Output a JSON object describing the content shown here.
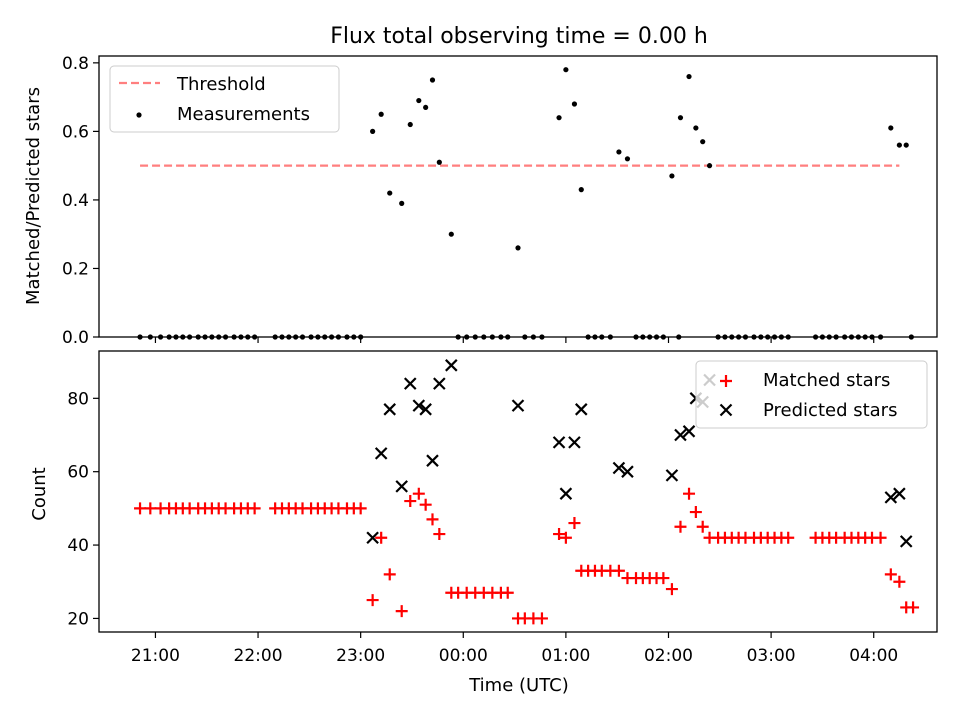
{
  "figure": {
    "title": "Flux total observing time = 0.00 h",
    "xlabel": "Time (UTC)",
    "xticks": [
      "21:00",
      "22:00",
      "23:00",
      "00:00",
      "01:00",
      "02:00",
      "03:00",
      "04:00"
    ]
  },
  "chart_data": [
    {
      "type": "scatter",
      "ylabel": "Matched/Predicted stars",
      "xlim": [
        "20:27",
        "04:37"
      ],
      "ylim": [
        0,
        0.82
      ],
      "yticks": [
        "0.0",
        "0.2",
        "0.4",
        "0.6",
        "0.8"
      ],
      "legend": {
        "position": "top-left",
        "entries": [
          "Threshold",
          "Measurements"
        ]
      },
      "threshold": {
        "name": "Threshold",
        "color": "#ff7f7f",
        "style": "dashed",
        "value": 0.5,
        "x": [
          "20:51",
          "04:15"
        ]
      },
      "series": [
        {
          "name": "Measurements",
          "marker": "dot",
          "color": "#000000",
          "points": [
            [
              "20:51",
              0
            ],
            [
              "20:57",
              0
            ],
            [
              "21:03",
              0
            ],
            [
              "21:08",
              0
            ],
            [
              "21:12",
              0
            ],
            [
              "21:16",
              0
            ],
            [
              "21:20",
              0
            ],
            [
              "21:25",
              0
            ],
            [
              "21:29",
              0
            ],
            [
              "21:33",
              0
            ],
            [
              "21:37",
              0
            ],
            [
              "21:41",
              0
            ],
            [
              "21:46",
              0
            ],
            [
              "21:50",
              0
            ],
            [
              "21:54",
              0
            ],
            [
              "21:58",
              0
            ],
            [
              "22:10",
              0
            ],
            [
              "22:14",
              0
            ],
            [
              "22:18",
              0
            ],
            [
              "22:22",
              0
            ],
            [
              "22:26",
              0
            ],
            [
              "22:31",
              0
            ],
            [
              "22:35",
              0
            ],
            [
              "22:39",
              0
            ],
            [
              "22:43",
              0
            ],
            [
              "22:47",
              0
            ],
            [
              "22:52",
              0
            ],
            [
              "22:56",
              0
            ],
            [
              "23:00",
              0
            ],
            [
              "23:07",
              0.6
            ],
            [
              "23:12",
              0.65
            ],
            [
              "23:17",
              0.42
            ],
            [
              "23:24",
              0.39
            ],
            [
              "23:29",
              0.62
            ],
            [
              "23:34",
              0.69
            ],
            [
              "23:38",
              0.67
            ],
            [
              "23:42",
              0.75
            ],
            [
              "23:46",
              0.51
            ],
            [
              "23:53",
              0.3
            ],
            [
              "23:57",
              0
            ],
            [
              "00:02",
              0
            ],
            [
              "00:07",
              0
            ],
            [
              "00:12",
              0
            ],
            [
              "00:17",
              0
            ],
            [
              "00:22",
              0
            ],
            [
              "00:26",
              0
            ],
            [
              "00:32",
              0.26
            ],
            [
              "00:36",
              0
            ],
            [
              "00:41",
              0
            ],
            [
              "00:46",
              0
            ],
            [
              "00:56",
              0.64
            ],
            [
              "01:00",
              0.78
            ],
            [
              "01:05",
              0.68
            ],
            [
              "01:09",
              0.43
            ],
            [
              "01:13",
              0
            ],
            [
              "01:17",
              0
            ],
            [
              "01:21",
              0
            ],
            [
              "01:26",
              0
            ],
            [
              "01:31",
              0.54
            ],
            [
              "01:36",
              0.52
            ],
            [
              "01:41",
              0
            ],
            [
              "01:45",
              0
            ],
            [
              "01:49",
              0
            ],
            [
              "01:53",
              0
            ],
            [
              "01:57",
              0
            ],
            [
              "02:02",
              0.47
            ],
            [
              "02:06",
              0
            ],
            [
              "02:07",
              0.64
            ],
            [
              "02:12",
              0.76
            ],
            [
              "02:16",
              0.61
            ],
            [
              "02:20",
              0.57
            ],
            [
              "02:24",
              0.5
            ],
            [
              "02:29",
              0
            ],
            [
              "02:33",
              0
            ],
            [
              "02:37",
              0
            ],
            [
              "02:41",
              0
            ],
            [
              "02:45",
              0
            ],
            [
              "02:50",
              0
            ],
            [
              "02:54",
              0
            ],
            [
              "02:58",
              0
            ],
            [
              "03:02",
              0
            ],
            [
              "03:06",
              0
            ],
            [
              "03:10",
              0
            ],
            [
              "03:26",
              0
            ],
            [
              "03:30",
              0
            ],
            [
              "03:34",
              0
            ],
            [
              "03:38",
              0
            ],
            [
              "03:43",
              0
            ],
            [
              "03:47",
              0
            ],
            [
              "03:51",
              0
            ],
            [
              "03:55",
              0
            ],
            [
              "03:59",
              0
            ],
            [
              "04:04",
              0
            ],
            [
              "04:10",
              0.61
            ],
            [
              "04:15",
              0.56
            ],
            [
              "04:19",
              0.56
            ],
            [
              "04:22",
              0
            ]
          ]
        }
      ]
    },
    {
      "type": "scatter",
      "ylabel": "Count",
      "xlim": [
        "20:27",
        "04:37"
      ],
      "ylim": [
        16.3,
        92.9
      ],
      "yticks": [
        "20",
        "40",
        "60",
        "80"
      ],
      "legend": {
        "position": "top-right",
        "entries": [
          "Matched stars",
          "Predicted stars"
        ]
      },
      "series": [
        {
          "name": "Matched stars",
          "marker": "plus",
          "color": "#ff0000",
          "points": [
            [
              "20:51",
              50
            ],
            [
              "20:57",
              50
            ],
            [
              "21:03",
              50
            ],
            [
              "21:08",
              50
            ],
            [
              "21:12",
              50
            ],
            [
              "21:16",
              50
            ],
            [
              "21:20",
              50
            ],
            [
              "21:25",
              50
            ],
            [
              "21:29",
              50
            ],
            [
              "21:33",
              50
            ],
            [
              "21:37",
              50
            ],
            [
              "21:41",
              50
            ],
            [
              "21:46",
              50
            ],
            [
              "21:50",
              50
            ],
            [
              "21:54",
              50
            ],
            [
              "21:58",
              50
            ],
            [
              "22:10",
              50
            ],
            [
              "22:14",
              50
            ],
            [
              "22:18",
              50
            ],
            [
              "22:22",
              50
            ],
            [
              "22:26",
              50
            ],
            [
              "22:31",
              50
            ],
            [
              "22:35",
              50
            ],
            [
              "22:39",
              50
            ],
            [
              "22:43",
              50
            ],
            [
              "22:47",
              50
            ],
            [
              "22:52",
              50
            ],
            [
              "22:56",
              50
            ],
            [
              "23:00",
              50
            ],
            [
              "23:07",
              25
            ],
            [
              "23:12",
              42
            ],
            [
              "23:17",
              32
            ],
            [
              "23:24",
              22
            ],
            [
              "23:29",
              52
            ],
            [
              "23:34",
              54
            ],
            [
              "23:38",
              51
            ],
            [
              "23:42",
              47
            ],
            [
              "23:46",
              43
            ],
            [
              "23:53",
              27
            ],
            [
              "23:57",
              27
            ],
            [
              "00:02",
              27
            ],
            [
              "00:07",
              27
            ],
            [
              "00:12",
              27
            ],
            [
              "00:17",
              27
            ],
            [
              "00:22",
              27
            ],
            [
              "00:26",
              27
            ],
            [
              "00:32",
              20
            ],
            [
              "00:36",
              20
            ],
            [
              "00:41",
              20
            ],
            [
              "00:46",
              20
            ],
            [
              "00:56",
              43
            ],
            [
              "01:00",
              42
            ],
            [
              "01:05",
              46
            ],
            [
              "01:09",
              33
            ],
            [
              "01:13",
              33
            ],
            [
              "01:17",
              33
            ],
            [
              "01:21",
              33
            ],
            [
              "01:26",
              33
            ],
            [
              "01:31",
              33
            ],
            [
              "01:36",
              31
            ],
            [
              "01:41",
              31
            ],
            [
              "01:45",
              31
            ],
            [
              "01:49",
              31
            ],
            [
              "01:53",
              31
            ],
            [
              "01:57",
              31
            ],
            [
              "02:02",
              28
            ],
            [
              "02:07",
              45
            ],
            [
              "02:12",
              54
            ],
            [
              "02:16",
              49
            ],
            [
              "02:20",
              45
            ],
            [
              "02:24",
              42
            ],
            [
              "02:29",
              42
            ],
            [
              "02:33",
              42
            ],
            [
              "02:37",
              42
            ],
            [
              "02:41",
              42
            ],
            [
              "02:45",
              42
            ],
            [
              "02:50",
              42
            ],
            [
              "02:54",
              42
            ],
            [
              "02:58",
              42
            ],
            [
              "03:02",
              42
            ],
            [
              "03:06",
              42
            ],
            [
              "03:10",
              42
            ],
            [
              "03:26",
              42
            ],
            [
              "03:30",
              42
            ],
            [
              "03:34",
              42
            ],
            [
              "03:38",
              42
            ],
            [
              "03:43",
              42
            ],
            [
              "03:47",
              42
            ],
            [
              "03:51",
              42
            ],
            [
              "03:55",
              42
            ],
            [
              "03:59",
              42
            ],
            [
              "04:04",
              42
            ],
            [
              "04:10",
              32
            ],
            [
              "04:15",
              30
            ],
            [
              "04:19",
              23
            ],
            [
              "04:23",
              23
            ]
          ]
        },
        {
          "name": "Predicted stars",
          "marker": "x",
          "color": "#000000",
          "points": [
            [
              "23:07",
              42
            ],
            [
              "23:12",
              65
            ],
            [
              "23:17",
              77
            ],
            [
              "23:24",
              56
            ],
            [
              "23:29",
              84
            ],
            [
              "23:34",
              78
            ],
            [
              "23:38",
              77
            ],
            [
              "23:42",
              63
            ],
            [
              "23:46",
              84
            ],
            [
              "23:53",
              89
            ],
            [
              "00:32",
              78
            ],
            [
              "00:56",
              68
            ],
            [
              "01:00",
              54
            ],
            [
              "01:05",
              68
            ],
            [
              "01:09",
              77
            ],
            [
              "01:31",
              61
            ],
            [
              "01:36",
              60
            ],
            [
              "02:02",
              59
            ],
            [
              "02:07",
              70
            ],
            [
              "02:12",
              71
            ],
            [
              "02:16",
              80
            ],
            [
              "02:20",
              79
            ],
            [
              "02:24",
              85
            ],
            [
              "04:10",
              53
            ],
            [
              "04:15",
              54
            ],
            [
              "04:19",
              41
            ]
          ]
        }
      ]
    }
  ]
}
